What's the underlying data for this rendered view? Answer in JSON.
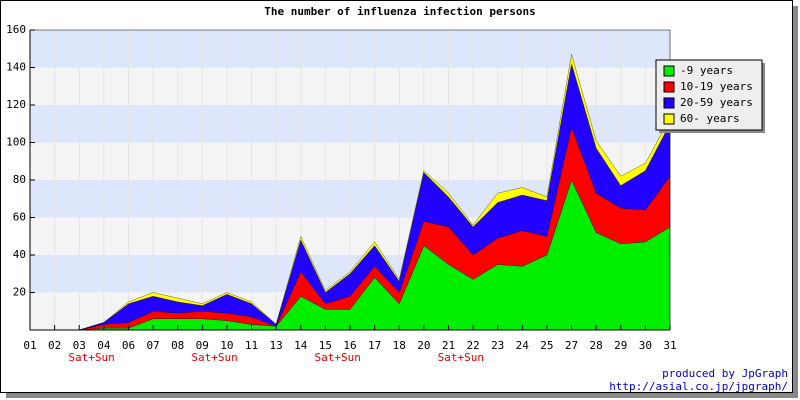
{
  "chart_data": {
    "type": "stacked_area",
    "title": "The number of influenza infection persons",
    "categories": [
      "01",
      "02",
      "03",
      "04",
      "06",
      "07",
      "08",
      "09",
      "10",
      "11",
      "13",
      "14",
      "15",
      "16",
      "17",
      "18",
      "20",
      "21",
      "22",
      "23",
      "24",
      "25",
      "27",
      "28",
      "29",
      "30",
      "31"
    ],
    "series": [
      {
        "name": "-9 years",
        "color": "#00ee00",
        "values": [
          0,
          0,
          0,
          1,
          1,
          6,
          6,
          6,
          5,
          3,
          2,
          18,
          11,
          11,
          28,
          14,
          45,
          35,
          27,
          35,
          34,
          40,
          80,
          52,
          46,
          47,
          55
        ]
      },
      {
        "name": "10-19 years",
        "color": "#ff0000",
        "values": [
          0,
          0,
          0,
          2,
          3,
          4,
          3,
          4,
          4,
          4,
          0,
          13,
          3,
          7,
          6,
          6,
          13,
          20,
          13,
          14,
          19,
          10,
          28,
          21,
          19,
          17,
          27
        ]
      },
      {
        "name": "20-59 years",
        "color": "#2200ff",
        "values": [
          0,
          0,
          0,
          1,
          10,
          8,
          6,
          3,
          10,
          7,
          1,
          17,
          6,
          12,
          11,
          6,
          26,
          16,
          15,
          19,
          19,
          19,
          34,
          24,
          12,
          21,
          28
        ]
      },
      {
        "name": "60- years",
        "color": "#ffff00",
        "values": [
          0,
          0,
          0,
          0,
          1,
          2,
          2,
          1,
          1,
          1,
          0,
          2,
          1,
          1,
          2,
          1,
          1,
          2,
          1,
          5,
          4,
          2,
          5,
          4,
          5,
          4,
          3
        ]
      }
    ],
    "ylim": [
      0,
      160
    ],
    "yticks": [
      20,
      40,
      60,
      80,
      100,
      120,
      140,
      160
    ],
    "grid": true,
    "legend": "top-right",
    "annotations": [
      {
        "text": "Sat+Sun",
        "categories": [
          "03",
          "04"
        ]
      },
      {
        "text": "Sat+Sun",
        "categories": [
          "09",
          "10"
        ]
      },
      {
        "text": "Sat+Sun",
        "categories": [
          "15",
          "16"
        ]
      },
      {
        "text": "Sat+Sun",
        "categories": [
          "21",
          "22"
        ]
      }
    ],
    "credits": [
      "produced by JpGraph",
      "http://asial.co.jp/jpgraph/"
    ]
  }
}
